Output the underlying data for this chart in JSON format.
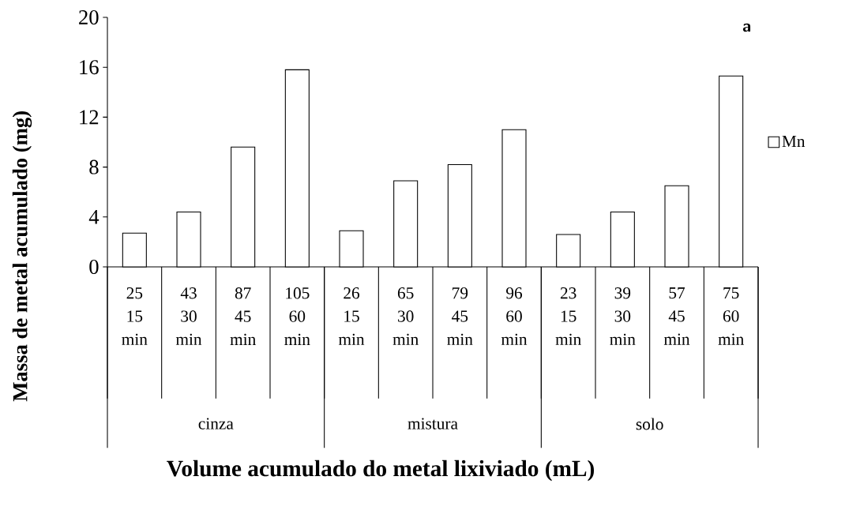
{
  "chart_data": {
    "type": "bar",
    "xlabel": "Volume acumulado do metal lixiviado (mL)",
    "ylabel": "Massa de metal acumulado (mg)",
    "categories": [
      "25 15 min",
      "43 30 min",
      "87 45 min",
      "105 60 min",
      "26 15 min",
      "65 30 min",
      "79 45 min",
      "96 60 min",
      "23 15 min",
      "39 30 min",
      "57 45 min",
      "75 60 min"
    ],
    "series": [
      {
        "name": "Mn",
        "color": "#ffffff",
        "values": [
          2.7,
          4.4,
          9.6,
          15.8,
          2.9,
          6.9,
          8.2,
          11.0,
          2.6,
          4.4,
          6.5,
          15.3
        ]
      }
    ],
    "ylim": [
      0,
      20
    ],
    "yticks": [
      0,
      4,
      8,
      12,
      16,
      20
    ],
    "annotations": [
      "cinza",
      "mistura",
      "solo",
      "a"
    ],
    "legend": "right",
    "grid": false
  }
}
